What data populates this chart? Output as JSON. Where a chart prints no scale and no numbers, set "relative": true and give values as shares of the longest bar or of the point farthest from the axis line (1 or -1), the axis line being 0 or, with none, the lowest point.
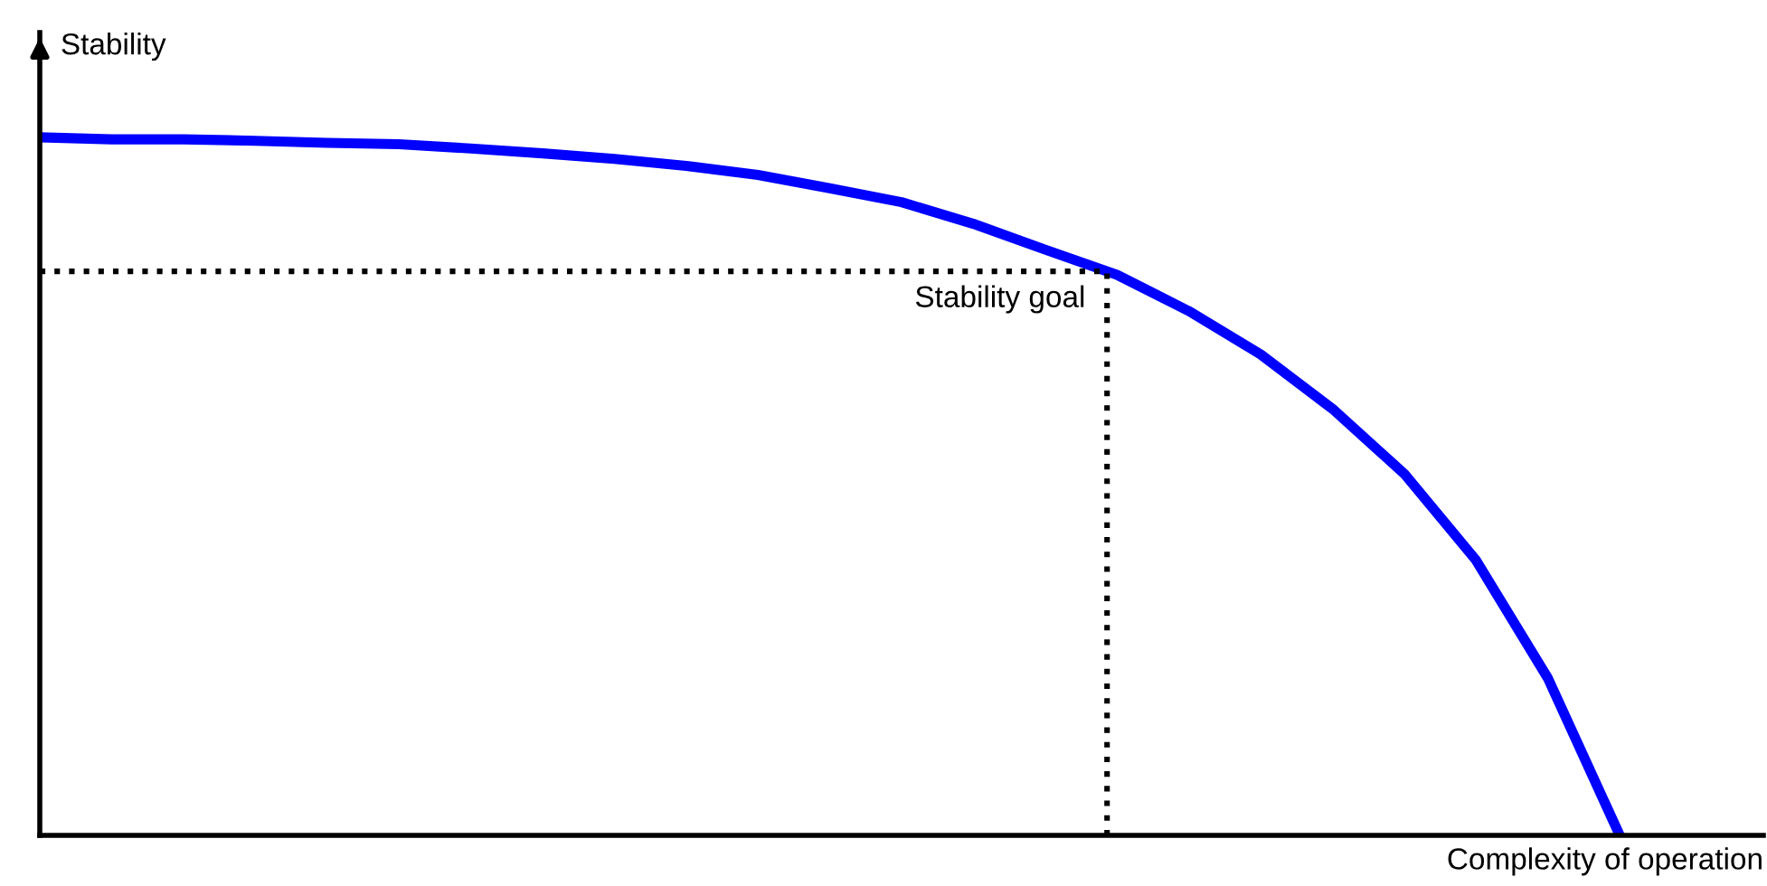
{
  "chart_data": {
    "type": "line",
    "relative": true,
    "xlabel": "Complexity of operation",
    "ylabel": "Stability",
    "categories": [
      null,
      null,
      null,
      null,
      null,
      null,
      null,
      null,
      null,
      null,
      null,
      null,
      null,
      null,
      null,
      null,
      null,
      null,
      null,
      null,
      null,
      null,
      null,
      null,
      null
    ],
    "series": [
      {
        "color": "#0000ff",
        "values": [
          1.0,
          0.997,
          0.997,
          0.995,
          0.992,
          0.99,
          0.984,
          0.977,
          0.969,
          0.959,
          0.946,
          0.927,
          0.907,
          0.876,
          0.839,
          0.803,
          0.751,
          0.689,
          0.611,
          0.518,
          0.394,
          0.225,
          0,
          null,
          null
        ]
      }
    ],
    "ref_lines": [
      {
        "axis": "y",
        "value": 0.808,
        "label": "Stability goal",
        "color": "#000000",
        "line_style": "dotted"
      }
    ],
    "marker": "none",
    "line_style": "solid"
  }
}
